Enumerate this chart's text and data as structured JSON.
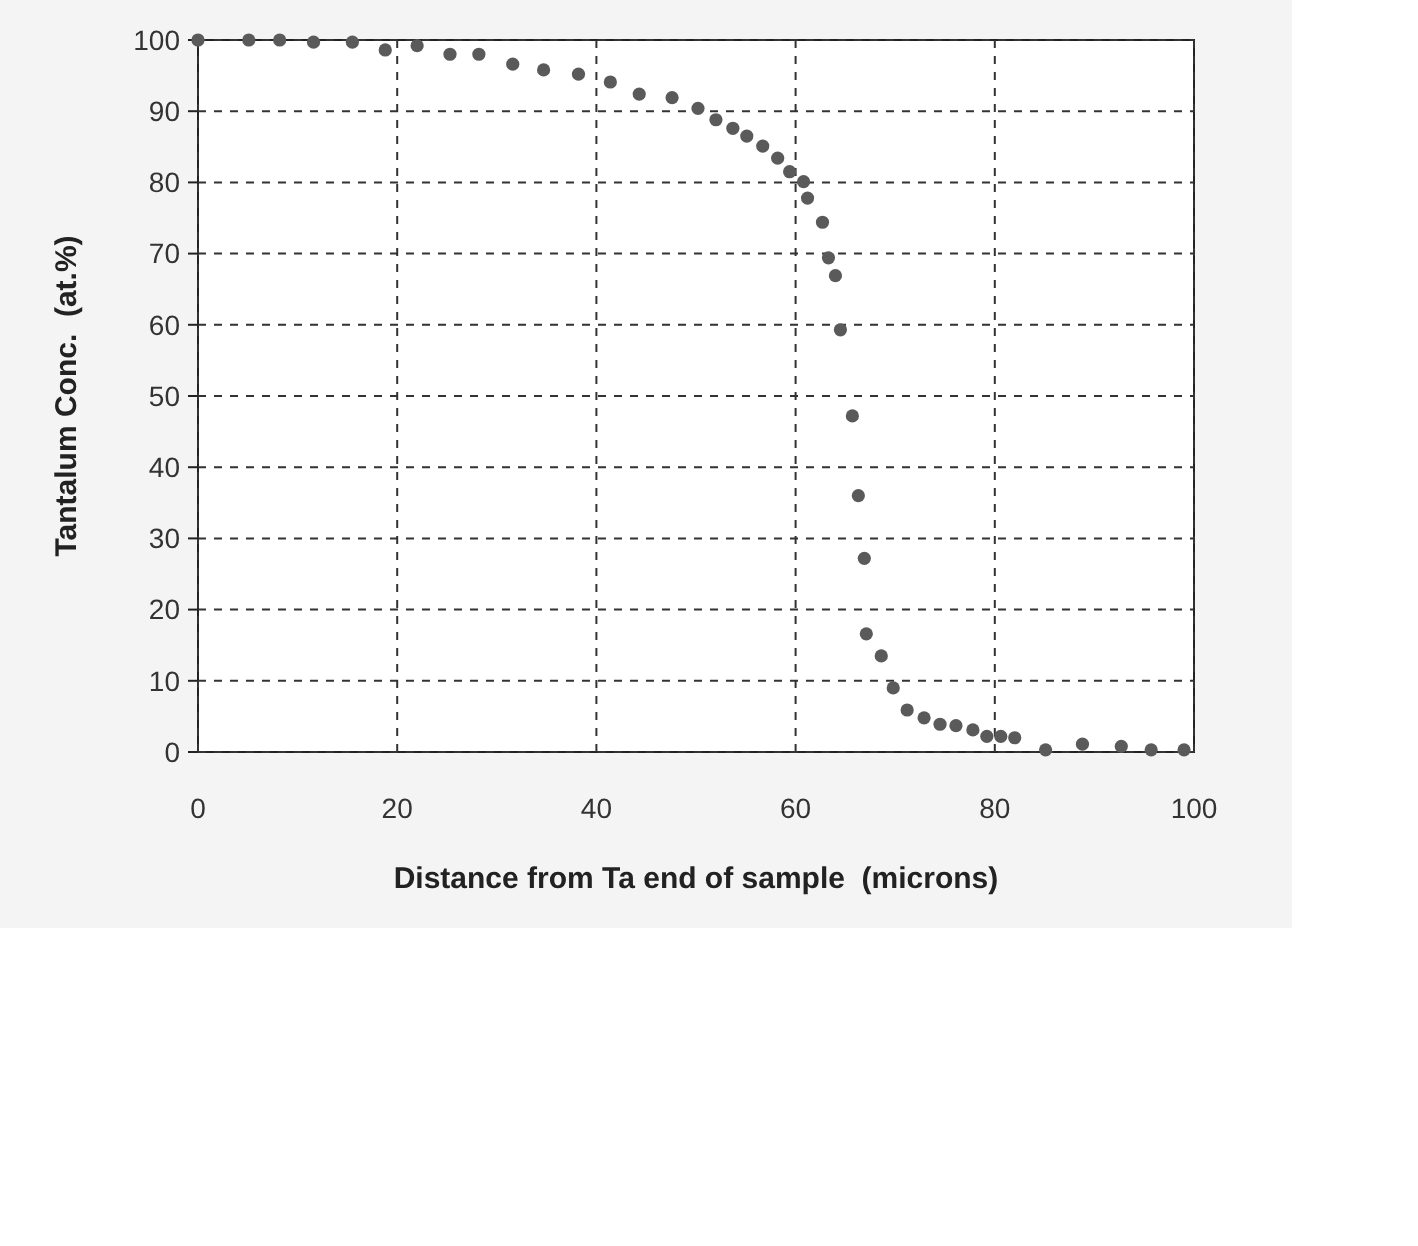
{
  "chart_data": {
    "type": "scatter",
    "xlabel": "Distance from Ta end of sample  (microns)",
    "ylabel": "Tantalum Conc.  (at.%)",
    "xlim": [
      0,
      100
    ],
    "xticks": [
      0,
      20,
      40,
      60,
      80,
      100
    ],
    "ylim": [
      0,
      100
    ],
    "yticks": [
      0,
      10,
      20,
      30,
      40,
      50,
      60,
      70,
      80,
      90,
      100
    ],
    "grid": true,
    "marker": "circle",
    "series": [
      {
        "color": "#5a5a5a",
        "x": [
          0,
          5.1,
          8.2,
          11.6,
          15.5,
          18.8,
          22,
          25.3,
          28.2,
          31.6,
          34.7,
          38.2,
          41.4,
          44.3,
          47.6,
          50.2,
          52,
          53.7,
          55.1,
          56.7,
          58.2,
          59.4,
          60.8,
          61.2,
          62.7,
          63.3,
          64,
          64.5,
          65.7,
          66.3,
          66.9,
          67.1,
          68.6,
          69.8,
          71.2,
          72.9,
          74.5,
          76.1,
          77.8,
          79.2,
          80.6,
          82,
          85.1,
          88.8,
          92.7,
          95.7,
          99
        ],
        "values": [
          100,
          100,
          100,
          99.7,
          99.7,
          98.6,
          99.2,
          98,
          98,
          96.6,
          95.8,
          95.2,
          94.1,
          92.4,
          91.9,
          90.4,
          88.8,
          87.6,
          86.5,
          85.1,
          83.4,
          81.5,
          80.1,
          77.8,
          74.4,
          69.4,
          66.9,
          59.3,
          47.2,
          36,
          27.2,
          16.6,
          13.5,
          9,
          5.9,
          4.8,
          3.9,
          3.7,
          3.1,
          2.2,
          2.2,
          2,
          0.3,
          1.1,
          0.8,
          0.3,
          0.3
        ]
      }
    ]
  }
}
